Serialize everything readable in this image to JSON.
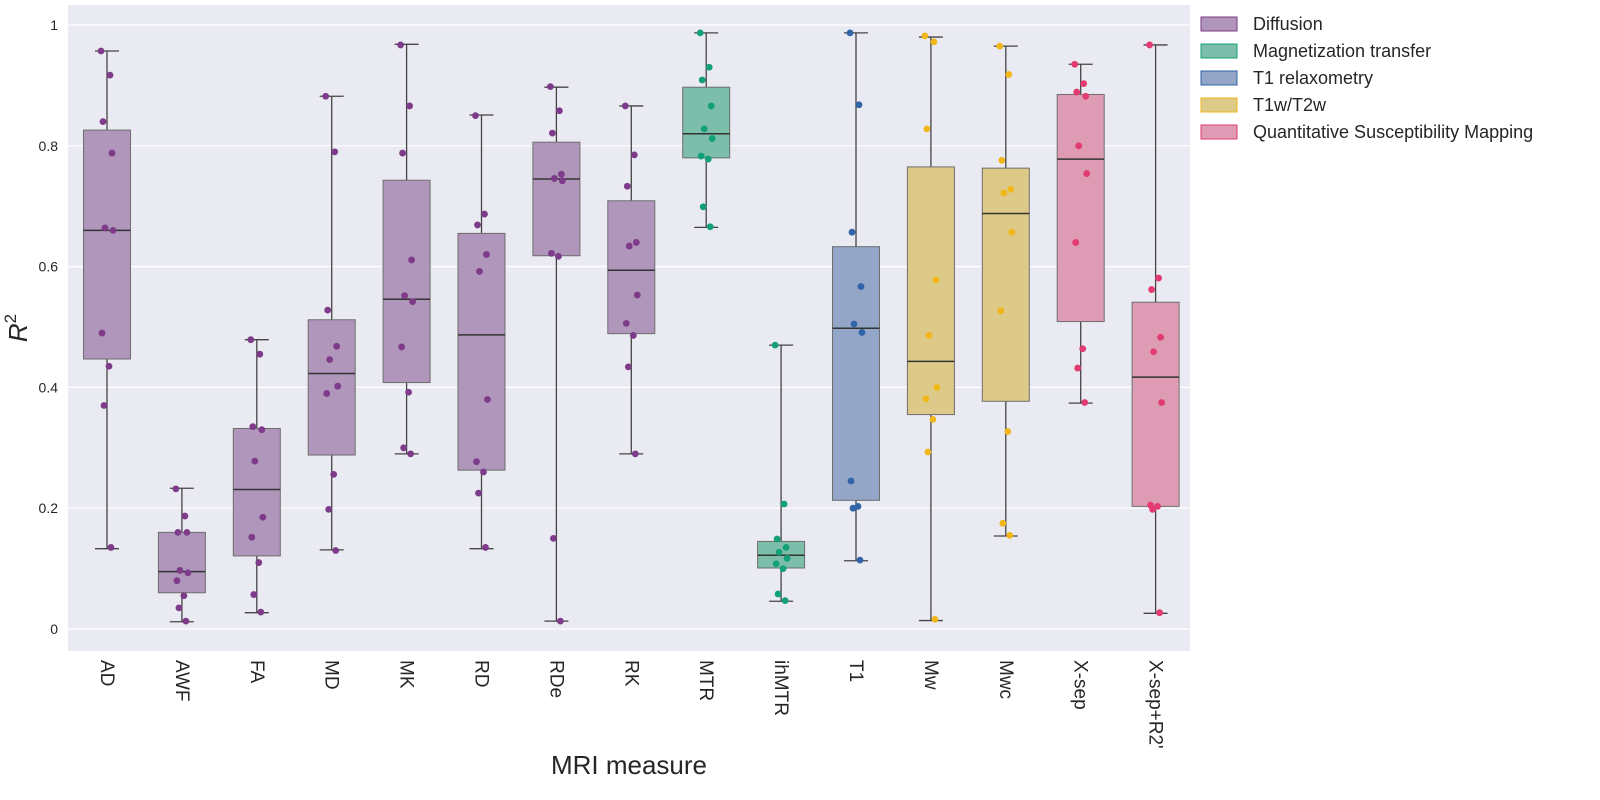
{
  "chart_data": {
    "type": "box",
    "xlabel": "MRI measure",
    "ylabel": "R",
    "ylabel_superscript": "2",
    "ylim": [
      -0.035,
      1.035
    ],
    "yticks": [
      0,
      0.2,
      0.4,
      0.6,
      0.8,
      1
    ],
    "ytick_labels": [
      "0",
      "0.2",
      "0.4",
      "0.6",
      "0.8",
      "1"
    ],
    "grid": true,
    "legend_position": "outside-top-right",
    "groups": [
      {
        "name": "Diffusion",
        "color": "#7E3B8A",
        "box_color": "#AF96BA"
      },
      {
        "name": "Magnetization transfer",
        "color": "#13A079",
        "box_color": "#7CBEAA"
      },
      {
        "name": "T1 relaxometry",
        "color": "#3264A8",
        "box_color": "#93A6C7"
      },
      {
        "name": "T1w/T2w",
        "color": "#F0B61A",
        "box_color": "#DECA88"
      },
      {
        "name": "Quantitative Susceptibility Mapping",
        "color": "#E23B72",
        "box_color": "#DD9CB4"
      }
    ],
    "categories": [
      {
        "label": "AD",
        "group": 0,
        "whislo": 0.133,
        "q1": 0.447,
        "med": 0.66,
        "q3": 0.826,
        "whishi": 0.957,
        "points": [
          0.957,
          0.917,
          0.84,
          0.788,
          0.664,
          0.66,
          0.49,
          0.435,
          0.37,
          0.135
        ]
      },
      {
        "label": "AWF",
        "group": 0,
        "whislo": 0.012,
        "q1": 0.06,
        "med": 0.095,
        "q3": 0.16,
        "whishi": 0.233,
        "points": [
          0.232,
          0.187,
          0.16,
          0.16,
          0.097,
          0.093,
          0.08,
          0.055,
          0.035,
          0.013
        ]
      },
      {
        "label": "FA",
        "group": 0,
        "whislo": 0.027,
        "q1": 0.121,
        "med": 0.231,
        "q3": 0.332,
        "whishi": 0.479,
        "points": [
          0.479,
          0.455,
          0.335,
          0.33,
          0.278,
          0.185,
          0.152,
          0.11,
          0.057,
          0.028
        ]
      },
      {
        "label": "MD",
        "group": 0,
        "whislo": 0.131,
        "q1": 0.288,
        "med": 0.423,
        "q3": 0.512,
        "whishi": 0.882,
        "points": [
          0.882,
          0.79,
          0.528,
          0.468,
          0.446,
          0.402,
          0.39,
          0.256,
          0.198,
          0.13
        ]
      },
      {
        "label": "MK",
        "group": 0,
        "whislo": 0.29,
        "q1": 0.408,
        "med": 0.546,
        "q3": 0.743,
        "whishi": 0.968,
        "points": [
          0.967,
          0.866,
          0.788,
          0.611,
          0.552,
          0.542,
          0.467,
          0.392,
          0.3,
          0.29
        ]
      },
      {
        "label": "RD",
        "group": 0,
        "whislo": 0.133,
        "q1": 0.263,
        "med": 0.487,
        "q3": 0.655,
        "whishi": 0.851,
        "points": [
          0.85,
          0.687,
          0.669,
          0.62,
          0.592,
          0.38,
          0.277,
          0.26,
          0.225,
          0.135
        ]
      },
      {
        "label": "RDe",
        "group": 0,
        "whislo": 0.013,
        "q1": 0.618,
        "med": 0.745,
        "q3": 0.806,
        "whishi": 0.897,
        "points": [
          0.898,
          0.858,
          0.821,
          0.753,
          0.746,
          0.742,
          0.622,
          0.617,
          0.15,
          0.013
        ]
      },
      {
        "label": "RK",
        "group": 0,
        "whislo": 0.29,
        "q1": 0.489,
        "med": 0.594,
        "q3": 0.709,
        "whishi": 0.866,
        "points": [
          0.866,
          0.785,
          0.733,
          0.64,
          0.634,
          0.553,
          0.506,
          0.486,
          0.434,
          0.29
        ]
      },
      {
        "label": "MTR",
        "group": 1,
        "whislo": 0.665,
        "q1": 0.78,
        "med": 0.82,
        "q3": 0.897,
        "whishi": 0.987,
        "points": [
          0.987,
          0.93,
          0.909,
          0.866,
          0.828,
          0.812,
          0.783,
          0.778,
          0.699,
          0.666
        ]
      },
      {
        "label": "ihMTR",
        "group": 1,
        "whislo": 0.046,
        "q1": 0.101,
        "med": 0.122,
        "q3": 0.145,
        "whishi": 0.47,
        "points": [
          0.47,
          0.207,
          0.149,
          0.135,
          0.127,
          0.117,
          0.108,
          0.1,
          0.058,
          0.047
        ]
      },
      {
        "label": "T1",
        "group": 2,
        "whislo": 0.113,
        "q1": 0.213,
        "med": 0.498,
        "q3": 0.633,
        "whishi": 0.987,
        "points": [
          0.987,
          0.868,
          0.657,
          0.567,
          0.505,
          0.491,
          0.245,
          0.203,
          0.2,
          0.114
        ]
      },
      {
        "label": "Mw",
        "group": 3,
        "whislo": 0.014,
        "q1": 0.355,
        "med": 0.443,
        "q3": 0.765,
        "whishi": 0.98,
        "points": [
          0.982,
          0.972,
          0.828,
          0.578,
          0.486,
          0.4,
          0.381,
          0.347,
          0.293,
          0.016
        ]
      },
      {
        "label": "Mwc",
        "group": 3,
        "whislo": 0.154,
        "q1": 0.377,
        "med": 0.688,
        "q3": 0.763,
        "whishi": 0.965,
        "points": [
          0.965,
          0.918,
          0.776,
          0.728,
          0.722,
          0.657,
          0.527,
          0.327,
          0.175,
          0.155
        ]
      },
      {
        "label": "X-sep",
        "group": 4,
        "whislo": 0.374,
        "q1": 0.509,
        "med": 0.778,
        "q3": 0.885,
        "whishi": 0.935,
        "points": [
          0.935,
          0.903,
          0.889,
          0.882,
          0.8,
          0.754,
          0.64,
          0.464,
          0.432,
          0.375
        ]
      },
      {
        "label": "X-sep+R2'",
        "group": 4,
        "whislo": 0.026,
        "q1": 0.203,
        "med": 0.417,
        "q3": 0.541,
        "whishi": 0.967,
        "points": [
          0.967,
          0.581,
          0.562,
          0.483,
          0.459,
          0.375,
          0.205,
          0.203,
          0.198,
          0.027
        ]
      }
    ]
  }
}
